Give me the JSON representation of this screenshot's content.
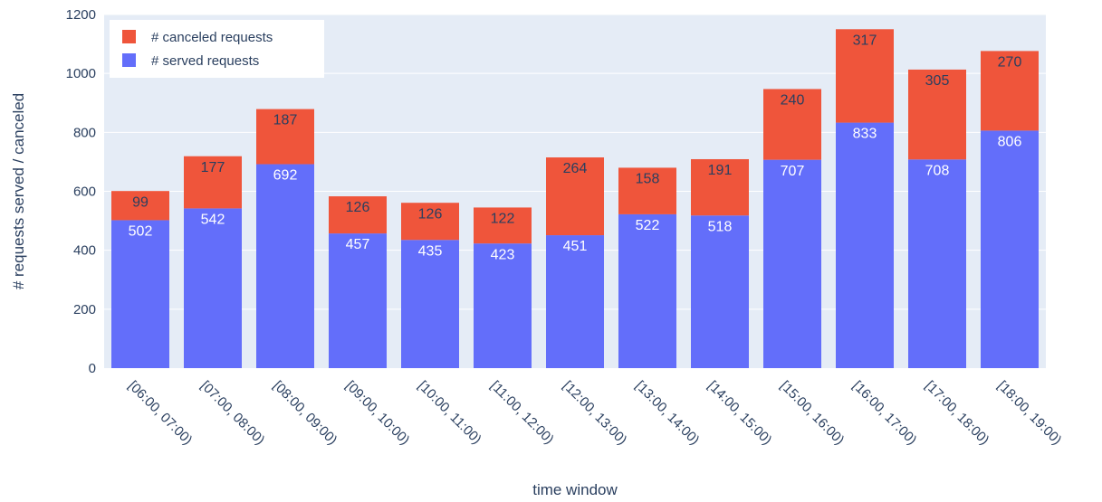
{
  "chart_data": {
    "type": "bar",
    "barmode": "stack",
    "categories": [
      "[06:00, 07:00)",
      "[07:00, 08:00)",
      "[08:00, 09:00)",
      "[09:00, 10:00)",
      "[10:00, 11:00)",
      "[11:00, 12:00)",
      "[12:00, 13:00)",
      "[13:00, 14:00)",
      "[14:00, 15:00)",
      "[15:00, 16:00)",
      "[16:00, 17:00)",
      "[17:00, 18:00)",
      "[18:00, 19:00)"
    ],
    "series": [
      {
        "name": "# served requests",
        "color": "#636efa",
        "values": [
          502,
          542,
          692,
          457,
          435,
          423,
          451,
          522,
          518,
          707,
          833,
          708,
          806
        ]
      },
      {
        "name": "# canceled requests",
        "color": "#ef553b",
        "values": [
          99,
          177,
          187,
          126,
          126,
          122,
          264,
          158,
          191,
          240,
          317,
          305,
          270
        ]
      }
    ],
    "xlabel": "time window",
    "ylabel": "# requests served / canceled",
    "ylim": [
      0,
      1200
    ],
    "yticks": [
      0,
      200,
      400,
      600,
      800,
      1000,
      1200
    ],
    "grid": true,
    "legend_position": "top-left",
    "plot_background": "#e5ecf6"
  }
}
